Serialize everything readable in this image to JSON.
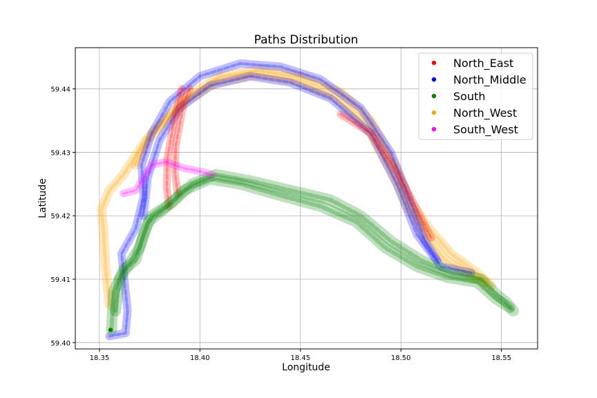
{
  "chart_data": {
    "type": "scatter",
    "title": "Paths Distribution",
    "xlabel": "Longitude",
    "ylabel": "Latitude",
    "xlim": [
      18.338,
      18.568
    ],
    "ylim": [
      59.399,
      59.4465
    ],
    "xticks": [
      18.35,
      18.4,
      18.45,
      18.5,
      18.55
    ],
    "xtick_labels": [
      "18.35",
      "18.40",
      "18.45",
      "18.50",
      "18.55"
    ],
    "yticks": [
      59.4,
      59.41,
      59.42,
      59.43,
      59.44
    ],
    "ytick_labels": [
      "59.40",
      "59.41",
      "59.42",
      "59.43",
      "59.44"
    ],
    "grid": true,
    "legend_position": "top-right",
    "series": [
      {
        "name": "North_East",
        "color": "#ff0000",
        "paths": [
          [
            [
              18.3845,
              59.4215
            ],
            [
              18.3835,
              59.4245
            ],
            [
              18.3838,
              59.429
            ],
            [
              18.386,
              59.433
            ],
            [
              18.3885,
              59.437
            ],
            [
              18.391,
              59.44
            ]
          ],
          [
            [
              18.389,
              59.4235
            ],
            [
              18.3875,
              59.427
            ],
            [
              18.388,
              59.431
            ],
            [
              18.39,
              59.4345
            ],
            [
              18.392,
              59.438
            ],
            [
              18.395,
              59.44
            ]
          ],
          [
            [
              18.47,
              59.436
            ],
            [
              18.485,
              59.433
            ],
            [
              18.498,
              59.427
            ],
            [
              18.508,
              59.421
            ],
            [
              18.515,
              59.4165
            ]
          ]
        ]
      },
      {
        "name": "North_Middle",
        "color": "#0000ff",
        "paths": [
          [
            [
              18.355,
              59.401
            ],
            [
              18.363,
              59.4015
            ],
            [
              18.364,
              59.405
            ],
            [
              18.3625,
              59.4095
            ],
            [
              18.361,
              59.414
            ],
            [
              18.368,
              59.418
            ],
            [
              18.372,
              59.423
            ],
            [
              18.371,
              59.428
            ],
            [
              18.376,
              59.433
            ],
            [
              18.385,
              59.438
            ],
            [
              18.4,
              59.442
            ],
            [
              18.42,
              59.444
            ],
            [
              18.44,
              59.4435
            ],
            [
              18.46,
              59.4415
            ],
            [
              18.48,
              59.437
            ],
            [
              18.495,
              59.43
            ],
            [
              18.505,
              59.422
            ],
            [
              18.512,
              59.416
            ],
            [
              18.518,
              59.413
            ]
          ],
          [
            [
              18.372,
              59.42
            ],
            [
              18.374,
              59.426
            ],
            [
              18.38,
              59.432
            ],
            [
              18.39,
              59.437
            ],
            [
              18.405,
              59.4405
            ],
            [
              18.425,
              59.442
            ],
            [
              18.445,
              59.441
            ],
            [
              18.465,
              59.4385
            ],
            [
              18.485,
              59.433
            ],
            [
              18.498,
              59.425
            ],
            [
              18.508,
              59.417
            ],
            [
              18.52,
              59.412
            ],
            [
              18.535,
              59.411
            ]
          ]
        ]
      },
      {
        "name": "South",
        "color": "#008000",
        "paths": [
          [
            [
              18.356,
              59.402
            ],
            [
              18.357,
              59.408
            ],
            [
              18.362,
              59.4115
            ],
            [
              18.368,
              59.413
            ],
            [
              18.372,
              59.417
            ],
            [
              18.376,
              59.42
            ],
            [
              18.386,
              59.422
            ],
            [
              18.396,
              59.425
            ],
            [
              18.408,
              59.4265
            ],
            [
              18.425,
              59.4255
            ],
            [
              18.445,
              59.424
            ],
            [
              18.465,
              59.4225
            ],
            [
              18.48,
              59.42
            ],
            [
              18.495,
              59.416
            ],
            [
              18.51,
              59.413
            ],
            [
              18.525,
              59.411
            ],
            [
              18.54,
              59.41
            ],
            [
              18.548,
              59.4075
            ],
            [
              18.552,
              59.4065
            ],
            [
              18.556,
              59.405
            ]
          ],
          [
            [
              18.358,
              59.405
            ],
            [
              18.36,
              59.41
            ],
            [
              18.365,
              59.4125
            ],
            [
              18.37,
              59.415
            ],
            [
              18.374,
              59.419
            ],
            [
              18.382,
              59.421
            ],
            [
              18.392,
              59.424
            ],
            [
              18.405,
              59.4258
            ],
            [
              18.42,
              59.425
            ],
            [
              18.44,
              59.4232
            ],
            [
              18.46,
              59.4215
            ],
            [
              18.478,
              59.419
            ],
            [
              18.492,
              59.415
            ],
            [
              18.508,
              59.412
            ],
            [
              18.523,
              59.4103
            ],
            [
              18.538,
              59.4095
            ],
            [
              18.547,
              59.407
            ],
            [
              18.554,
              59.4055
            ]
          ]
        ]
      },
      {
        "name": "North_West",
        "color": "#ffa500",
        "paths": [
          [
            [
              18.355,
              59.406
            ],
            [
              18.353,
              59.412
            ],
            [
              18.352,
              59.418
            ],
            [
              18.351,
              59.421
            ],
            [
              18.355,
              59.424
            ],
            [
              18.362,
              59.4265
            ],
            [
              18.369,
              59.43
            ],
            [
              18.376,
              59.433
            ],
            [
              18.385,
              59.436
            ],
            [
              18.395,
              59.439
            ],
            [
              18.41,
              59.442
            ],
            [
              18.43,
              59.443
            ],
            [
              18.45,
              59.442
            ],
            [
              18.47,
              59.4395
            ],
            [
              18.485,
              59.435
            ],
            [
              18.497,
              59.428
            ],
            [
              18.505,
              59.422
            ],
            [
              18.514,
              59.418
            ],
            [
              18.525,
              59.414
            ],
            [
              18.538,
              59.411
            ],
            [
              18.545,
              59.409
            ]
          ],
          [
            [
              18.368,
              59.428
            ],
            [
              18.374,
              59.432
            ],
            [
              18.383,
              59.435
            ],
            [
              18.393,
              59.438
            ],
            [
              18.408,
              59.441
            ],
            [
              18.428,
              59.4422
            ],
            [
              18.448,
              59.4412
            ],
            [
              18.468,
              59.4385
            ],
            [
              18.483,
              59.434
            ],
            [
              18.495,
              59.427
            ],
            [
              18.504,
              59.421
            ],
            [
              18.512,
              59.417
            ],
            [
              18.522,
              59.413
            ],
            [
              18.533,
              59.411
            ],
            [
              18.542,
              59.4095
            ]
          ]
        ]
      },
      {
        "name": "South_West",
        "color": "#ff00ff",
        "paths": [
          [
            [
              18.362,
              59.4235
            ],
            [
              18.368,
              59.424
            ],
            [
              18.372,
              59.426
            ],
            [
              18.376,
              59.428
            ],
            [
              18.383,
              59.4285
            ],
            [
              18.392,
              59.4275
            ],
            [
              18.4,
              59.427
            ],
            [
              18.406,
              59.4265
            ]
          ]
        ]
      }
    ],
    "highlight_point": {
      "x": 18.3555,
      "y": 59.402,
      "color": "#008000"
    }
  }
}
